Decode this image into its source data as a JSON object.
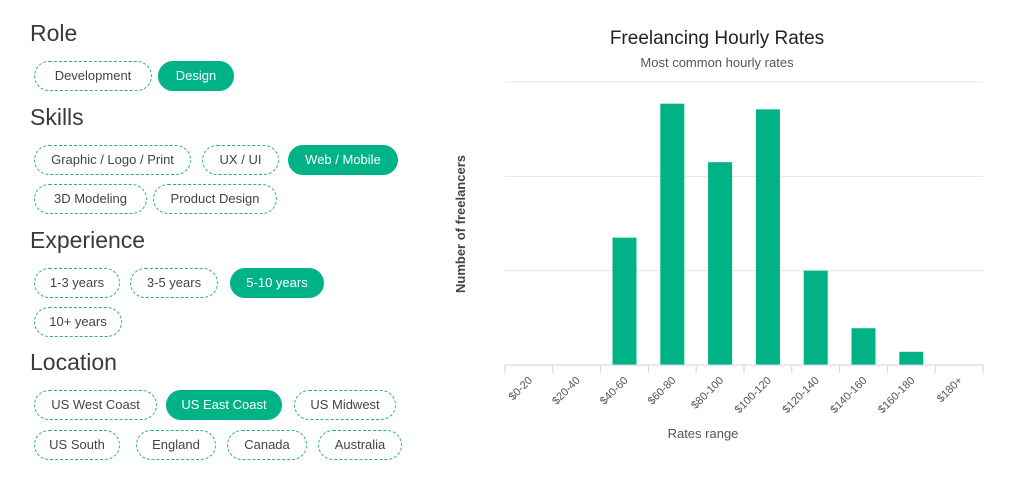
{
  "filters": {
    "role": {
      "title": "Role",
      "options": [
        {
          "label": "Development",
          "active": false
        },
        {
          "label": "Design",
          "active": true
        }
      ]
    },
    "skills": {
      "title": "Skills",
      "options": [
        {
          "label": "Graphic / Logo / Print",
          "active": false
        },
        {
          "label": "UX / UI",
          "active": false
        },
        {
          "label": "Web / Mobile",
          "active": true
        },
        {
          "label": "3D Modeling",
          "active": false
        },
        {
          "label": "Product Design",
          "active": false
        }
      ]
    },
    "experience": {
      "title": "Experience",
      "options": [
        {
          "label": "1-3 years",
          "active": false
        },
        {
          "label": "3-5 years",
          "active": false
        },
        {
          "label": "5-10 years",
          "active": true
        },
        {
          "label": "10+ years",
          "active": false
        }
      ]
    },
    "location": {
      "title": "Location",
      "options": [
        {
          "label": "US West Coast",
          "active": false
        },
        {
          "label": "US East Coast",
          "active": true
        },
        {
          "label": "US Midwest",
          "active": false
        },
        {
          "label": "US South",
          "active": false
        },
        {
          "label": "England",
          "active": false
        },
        {
          "label": "Canada",
          "active": false
        },
        {
          "label": "Australia",
          "active": false
        }
      ]
    }
  },
  "colors": {
    "accent": "#00b386",
    "grid": "#e6e6e6",
    "text": "#444444"
  },
  "chart_data": {
    "type": "bar",
    "title": "Freelancing Hourly Rates",
    "subtitle": "Most common hourly rates",
    "xlabel": "Rates range",
    "ylabel": "Number of freelancers",
    "categories": [
      "$0-20",
      "$20-40",
      "$40-60",
      "$60-80",
      "$80-100",
      "$100-120",
      "$120-140",
      "$140-160",
      "$160-180",
      "$180+"
    ],
    "values": [
      0,
      0,
      1.35,
      2.77,
      2.15,
      2.71,
      1.0,
      0.39,
      0.14,
      0
    ],
    "ylim": [
      0,
      3
    ],
    "grid": true
  }
}
